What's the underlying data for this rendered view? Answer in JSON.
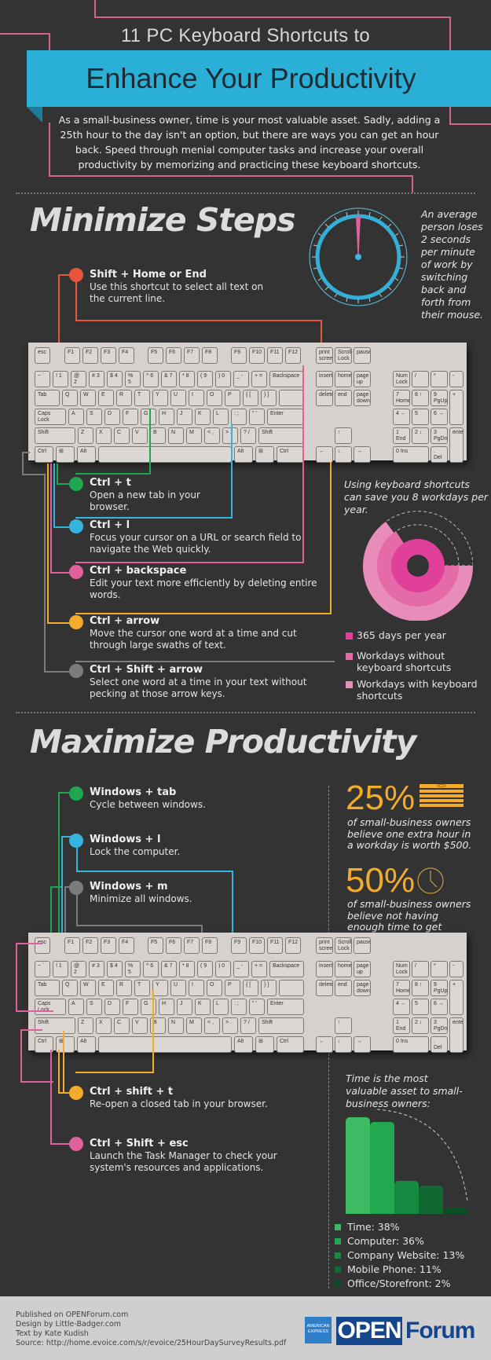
{
  "header": {
    "title_line1": "11 PC Keyboard Shortcuts to",
    "title_line2": "Enhance Your Productivity",
    "intro": "As a small-business owner, time is your most valuable asset. Sadly, adding a 25th hour to the day isn't an option, but there are ways you can get an hour back. Speed through menial computer tasks and increase your overall productivity by memorizing and practicing these keyboard shortcuts."
  },
  "colors": {
    "background": "#333333",
    "banner": "#2aafd6",
    "red": "#e8553f",
    "green": "#1fa64f",
    "blue": "#36b4e0",
    "pink": "#e0609c",
    "orange": "#f2ab2b",
    "gray": "#7c7c7c"
  },
  "minimize": {
    "title": "Minimize Steps",
    "clock_note": "An average person loses 2 seconds per minute of work by switching back and forth from their mouse.",
    "shortcuts": [
      {
        "keys": "Shift + Home or End",
        "desc": "Use this shortcut to select all text on the current line.",
        "color": "#e8553f"
      },
      {
        "keys": "Ctrl + t",
        "desc": "Open a new tab in your browser.",
        "color": "#1fa64f"
      },
      {
        "keys": "Ctrl + l",
        "desc": "Focus your cursor on a URL or search field to navigate the Web quickly.",
        "color": "#36b4e0"
      },
      {
        "keys": "Ctrl + backspace",
        "desc": "Edit your text more efficiently by deleting entire words.",
        "color": "#e0609c"
      },
      {
        "keys": "Ctrl + arrow",
        "desc": "Move the cursor one word at a time and cut through large swaths of text.",
        "color": "#f2ab2b"
      },
      {
        "keys": "Ctrl + Shift + arrow",
        "desc": "Select one word at a time in your text without pecking at those arrow keys.",
        "color": "#7c7c7c"
      }
    ],
    "donut_note": "Using keyboard shortcuts can save you 8 workdays per year.",
    "legend": [
      {
        "label": "365 days per year",
        "color": "#e0409a"
      },
      {
        "label": "Workdays without keyboard shortcuts",
        "color": "#e46aa8"
      },
      {
        "label": "Workdays with keyboard shortcuts",
        "color": "#e88cba"
      }
    ]
  },
  "maximize": {
    "title": "Maximize Productivity",
    "shortcuts": [
      {
        "keys": "Windows + tab",
        "desc": "Cycle between windows.",
        "color": "#1fa64f"
      },
      {
        "keys": "Windows + l",
        "desc": "Lock the computer.",
        "color": "#36b4e0"
      },
      {
        "keys": "Windows + m",
        "desc": "Minimize all windows.",
        "color": "#7c7c7c"
      },
      {
        "keys": "Ctrl + shift + t",
        "desc": "Re-open a closed tab in your browser.",
        "color": "#f2ab2b"
      },
      {
        "keys": "Ctrl + Shift + esc",
        "desc": "Launch the Task Manager to check your system's resources and applications.",
        "color": "#e0609c"
      }
    ],
    "stats": [
      {
        "value": "25%",
        "text": "of small-business owners believe one extra hour in a workday is worth $500."
      },
      {
        "value": "50%",
        "text": "of small-business owners believe not having enough time to get everything done is their biggest challenge."
      }
    ],
    "bar_note": "Time is the most valuable asset to small-business owners:"
  },
  "keyboard": {
    "fn_row": [
      "esc",
      "F1",
      "F2",
      "F3",
      "F4",
      "F5",
      "F6",
      "F7",
      "F8",
      "F9",
      "F10",
      "F11",
      "F12",
      "print screen",
      "Scroll Lock",
      "pause"
    ],
    "num_row": [
      "~ `",
      "! 1",
      "@ 2",
      "# 3",
      "$ 4",
      "% 5",
      "^ 6",
      "& 7",
      "* 8",
      "( 9",
      ") 0",
      "_ -",
      "+ =",
      "Backspace",
      "insert",
      "home",
      "page up",
      "Num Lock",
      "/",
      "*",
      "-"
    ],
    "q_row": [
      "Tab",
      "Q",
      "W",
      "E",
      "R",
      "T",
      "Y",
      "U",
      "I",
      "O",
      "P",
      "{ [",
      "} ]",
      "delete",
      "end",
      "page down",
      "7 Home",
      "8 ↑",
      "9 PgUp",
      "+"
    ],
    "a_row": [
      "Caps Lock",
      "A",
      "S",
      "D",
      "F",
      "G",
      "H",
      "J",
      "K",
      "L",
      ": ;",
      "\" '",
      "Enter",
      "4 ←",
      "5",
      "6 →"
    ],
    "z_row": [
      "Shift",
      "Z",
      "X",
      "C",
      "V",
      "B",
      "N",
      "M",
      "< ,",
      "> .",
      "? /",
      "Shift",
      "↑",
      "1 End",
      "2 ↓",
      "3 PgDn",
      "enter"
    ],
    "bottom_row": [
      "Ctrl",
      "⊞",
      "Alt",
      "",
      "Alt",
      "⊞",
      "Ctrl",
      "←",
      "↓",
      "→",
      "0 Ins",
      ". Del"
    ]
  },
  "chart_data": [
    {
      "type": "pie",
      "title": "Using keyboard shortcuts can save you 8 workdays per year.",
      "categories": [
        "365 days per year",
        "Workdays without keyboard shortcuts",
        "Workdays with keyboard shortcuts"
      ],
      "values": [
        365,
        260,
        252
      ],
      "note": "Concentric radial arcs; outer arcs show workday proportions of year"
    },
    {
      "type": "bar",
      "title": "Time is the most valuable asset to small-business owners:",
      "categories": [
        "Time",
        "Computer",
        "Company Website",
        "Mobile Phone",
        "Office/Storefront"
      ],
      "values": [
        38,
        36,
        13,
        11,
        2
      ],
      "labels": [
        "Time: 38%",
        "Computer: 36%",
        "Company Website: 13%",
        "Mobile Phone: 11%",
        "Office/Storefront: 2%"
      ],
      "colors": [
        "#3dbb63",
        "#22a84f",
        "#178a41",
        "#0f6a32",
        "#0b4f26"
      ],
      "ylim": [
        0,
        40
      ],
      "grid": false,
      "legend_position": "bottom"
    }
  ],
  "footer": {
    "lines": [
      "Published on OPENForum.com",
      "Design by Little-Badger.com",
      "Text by Kate Kudish",
      "Source: http://home.evoice.com/s/r/evoice/25HourDaySurveyResults.pdf"
    ],
    "amex_line1": "AMERICAN",
    "amex_line2": "EXPRESS",
    "logo_open": "OPEN",
    "logo_forum": "Forum"
  }
}
